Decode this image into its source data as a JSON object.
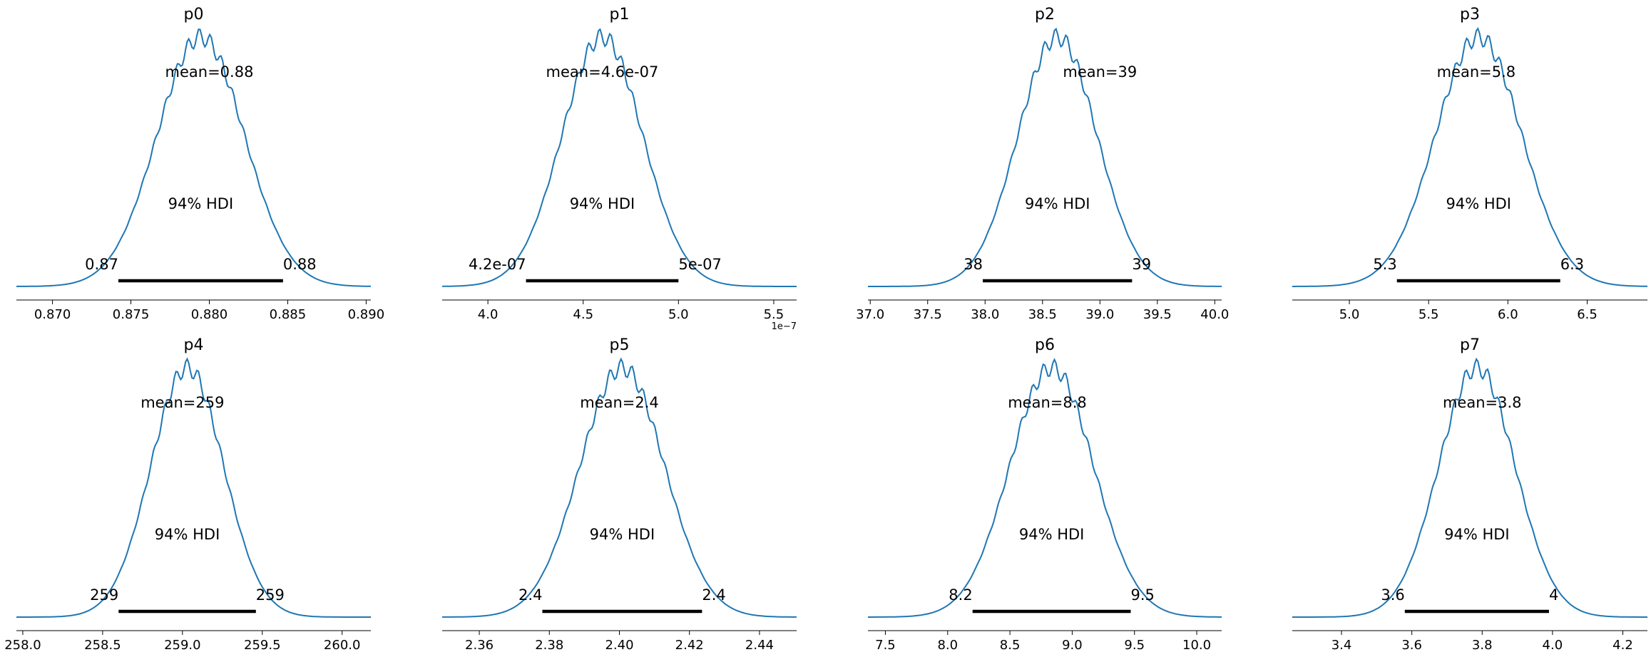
{
  "colors": {
    "density": "#1f77b4",
    "hdi_bar": "#000000",
    "axis": "#000000"
  },
  "chart_data": [
    {
      "type": "line",
      "title": "p0",
      "mean": 0.88,
      "mean_label": "mean=0.88",
      "hdi_prob": 0.94,
      "hdi_label": "94% HDI",
      "hdi": [
        0.8742,
        0.8847
      ],
      "hdi_low_label": "0.87",
      "hdi_high_label": "0.88",
      "xlim": [
        0.8677,
        0.8903
      ],
      "ticks": [
        0.87,
        0.875,
        0.88,
        0.885,
        0.89
      ],
      "tick_labels": [
        "0.870",
        "0.875",
        "0.880",
        "0.885",
        "0.890"
      ],
      "offset_label": "",
      "grid": false
    },
    {
      "type": "line",
      "title": "p1",
      "mean": 4.6e-07,
      "mean_label": "mean=4.6e-07",
      "hdi_prob": 0.94,
      "hdi_label": "94% HDI",
      "hdi": [
        4.2e-07,
        5e-07
      ],
      "hdi_low_label": "4.2e-07",
      "hdi_high_label": "5e-07",
      "xlim": [
        3.76e-07,
        5.62e-07
      ],
      "ticks": [
        4e-07,
        4.5e-07,
        5e-07,
        5.5e-07
      ],
      "tick_labels": [
        "4.0",
        "4.5",
        "5.0",
        "5.5"
      ],
      "offset_label": "1e−7",
      "grid": false
    },
    {
      "type": "line",
      "title": "p2",
      "mean": 39,
      "mean_label": "mean=39",
      "hdi_prob": 0.94,
      "hdi_label": "94% HDI",
      "hdi": [
        37.98,
        39.28
      ],
      "hdi_low_label": "38",
      "hdi_high_label": "39",
      "xlim": [
        36.98,
        40.06
      ],
      "ticks": [
        37.0,
        37.5,
        38.0,
        38.5,
        39.0,
        39.5,
        40.0
      ],
      "tick_labels": [
        "37.0",
        "37.5",
        "38.0",
        "38.5",
        "39.0",
        "39.5",
        "40.0"
      ],
      "offset_label": "",
      "grid": false
    },
    {
      "type": "line",
      "title": "p3",
      "mean": 5.8,
      "mean_label": "mean=5.8",
      "hdi_prob": 0.94,
      "hdi_label": "94% HDI",
      "hdi": [
        5.3,
        6.33
      ],
      "hdi_low_label": "5.3",
      "hdi_high_label": "6.3",
      "xlim": [
        4.64,
        6.88
      ],
      "ticks": [
        5.0,
        5.5,
        6.0,
        6.5
      ],
      "tick_labels": [
        "5.0",
        "5.5",
        "6.0",
        "6.5"
      ],
      "offset_label": "",
      "grid": false
    },
    {
      "type": "line",
      "title": "p4",
      "mean": 259,
      "mean_label": "mean=259",
      "hdi_prob": 0.94,
      "hdi_label": "94% HDI",
      "hdi": [
        258.6,
        259.46
      ],
      "hdi_low_label": "259",
      "hdi_high_label": "259",
      "xlim": [
        257.96,
        260.18
      ],
      "ticks": [
        258.0,
        258.5,
        259.0,
        259.5,
        260.0
      ],
      "tick_labels": [
        "258.0",
        "258.5",
        "259.0",
        "259.5",
        "260.0"
      ],
      "offset_label": "",
      "grid": false
    },
    {
      "type": "line",
      "title": "p5",
      "mean": 2.4,
      "mean_label": "mean=2.4",
      "hdi_prob": 0.94,
      "hdi_label": "94% HDI",
      "hdi": [
        2.378,
        2.4236
      ],
      "hdi_low_label": "2.4",
      "hdi_high_label": "2.4",
      "xlim": [
        2.3494,
        2.4506
      ],
      "ticks": [
        2.36,
        2.38,
        2.4,
        2.42,
        2.44
      ],
      "tick_labels": [
        "2.36",
        "2.38",
        "2.40",
        "2.42",
        "2.44"
      ],
      "offset_label": "",
      "grid": false
    },
    {
      "type": "line",
      "title": "p6",
      "mean": 8.8,
      "mean_label": "mean=8.8",
      "hdi_prob": 0.94,
      "hdi_label": "94% HDI",
      "hdi": [
        8.2,
        9.47
      ],
      "hdi_low_label": "8.2",
      "hdi_high_label": "9.5",
      "xlim": [
        7.36,
        10.2
      ],
      "ticks": [
        7.5,
        8.0,
        8.5,
        9.0,
        9.5,
        10.0
      ],
      "tick_labels": [
        "7.5",
        "8.0",
        "8.5",
        "9.0",
        "9.5",
        "10.0"
      ],
      "offset_label": "",
      "grid": false
    },
    {
      "type": "line",
      "title": "p7",
      "mean": 3.8,
      "mean_label": "mean=3.8",
      "hdi_prob": 0.94,
      "hdi_label": "94% HDI",
      "hdi": [
        3.58,
        3.99
      ],
      "hdi_low_label": "3.6",
      "hdi_high_label": "4",
      "xlim": [
        3.26,
        4.27
      ],
      "ticks": [
        3.4,
        3.6,
        3.8,
        4.0,
        4.2
      ],
      "tick_labels": [
        "3.4",
        "3.6",
        "3.8",
        "4.0",
        "4.2"
      ],
      "offset_label": "",
      "grid": false
    }
  ]
}
